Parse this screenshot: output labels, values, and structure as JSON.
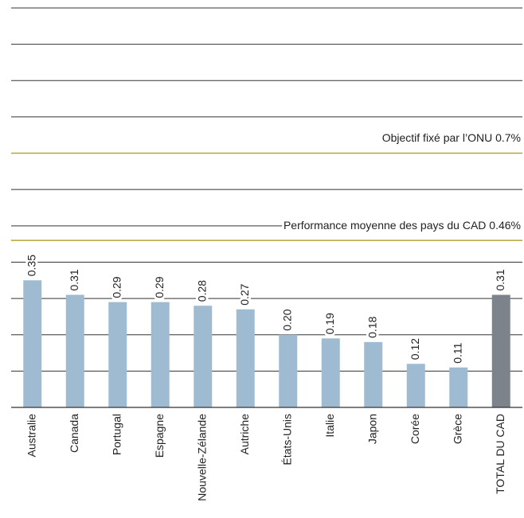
{
  "chart_data": {
    "type": "bar",
    "categories": [
      "Australie",
      "Canada",
      "Portugal",
      "Espagne",
      "Nouvelle-Zélande",
      "Autriche",
      "États-Unis",
      "Italie",
      "Japon",
      "Corée",
      "Grèce",
      "TOTAL DU CAD"
    ],
    "values": [
      0.35,
      0.31,
      0.29,
      0.29,
      0.28,
      0.27,
      0.2,
      0.19,
      0.18,
      0.12,
      0.11,
      0.31
    ],
    "value_labels": [
      "0.35",
      "0.31",
      "0.29",
      "0.29",
      "0.28",
      "0.27",
      "0.20",
      "0.19",
      "0.18",
      "0.12",
      "0.11",
      "0.31"
    ],
    "colors": [
      "#9fbbd2",
      "#9fbbd2",
      "#9fbbd2",
      "#9fbbd2",
      "#9fbbd2",
      "#9fbbd2",
      "#9fbbd2",
      "#9fbbd2",
      "#9fbbd2",
      "#9fbbd2",
      "#9fbbd2",
      "#7c838a"
    ],
    "ylim": [
      0,
      1.1
    ],
    "yticks": [
      0,
      0.1,
      0.2,
      0.3,
      0.4,
      0.5,
      0.6,
      0.7,
      0.8,
      0.9,
      1.0,
      1.1
    ],
    "grid": true,
    "reference_lines": [
      {
        "value": 0.7,
        "label": "Objectif fixé par l’ONU 0.7%",
        "color": "#b7a33c"
      },
      {
        "value": 0.46,
        "label": "Performance moyenne des pays du CAD 0.46%",
        "color": "#b7a33c"
      }
    ]
  }
}
